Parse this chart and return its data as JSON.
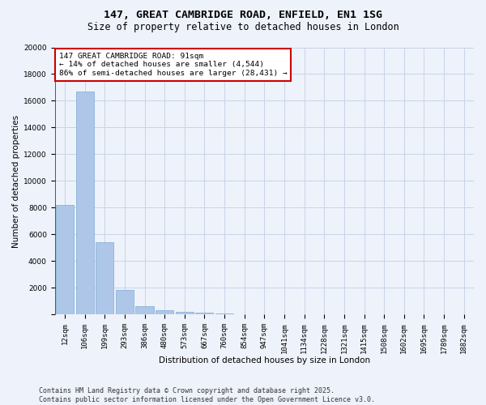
{
  "title_line1": "147, GREAT CAMBRIDGE ROAD, ENFIELD, EN1 1SG",
  "title_line2": "Size of property relative to detached houses in London",
  "xlabel": "Distribution of detached houses by size in London",
  "ylabel": "Number of detached properties",
  "categories": [
    "12sqm",
    "106sqm",
    "199sqm",
    "293sqm",
    "386sqm",
    "480sqm",
    "573sqm",
    "667sqm",
    "760sqm",
    "854sqm",
    "947sqm",
    "1041sqm",
    "1134sqm",
    "1228sqm",
    "1321sqm",
    "1415sqm",
    "1508sqm",
    "1602sqm",
    "1695sqm",
    "1789sqm",
    "1882sqm"
  ],
  "values": [
    8200,
    16700,
    5400,
    1850,
    650,
    350,
    220,
    150,
    120,
    0,
    0,
    0,
    0,
    0,
    0,
    0,
    0,
    0,
    0,
    0,
    0
  ],
  "bar_color": "#aec6e8",
  "bar_edge_color": "#7aadd4",
  "property_line_color": "#cc0000",
  "annotation_text": "147 GREAT CAMBRIDGE ROAD: 91sqm\n← 14% of detached houses are smaller (4,544)\n86% of semi-detached houses are larger (28,431) →",
  "annotation_box_color": "#ffffff",
  "annotation_box_edge_color": "#cc0000",
  "grid_color": "#c8d4e8",
  "background_color": "#eef2fa",
  "ylim": [
    0,
    20000
  ],
  "yticks": [
    0,
    2000,
    4000,
    6000,
    8000,
    10000,
    12000,
    14000,
    16000,
    18000,
    20000
  ],
  "footer_line1": "Contains HM Land Registry data © Crown copyright and database right 2025.",
  "footer_line2": "Contains public sector information licensed under the Open Government Licence v3.0.",
  "title_fontsize": 9.5,
  "subtitle_fontsize": 8.5,
  "axis_label_fontsize": 7.5,
  "tick_fontsize": 6.5,
  "annotation_fontsize": 6.8,
  "footer_fontsize": 6.0
}
